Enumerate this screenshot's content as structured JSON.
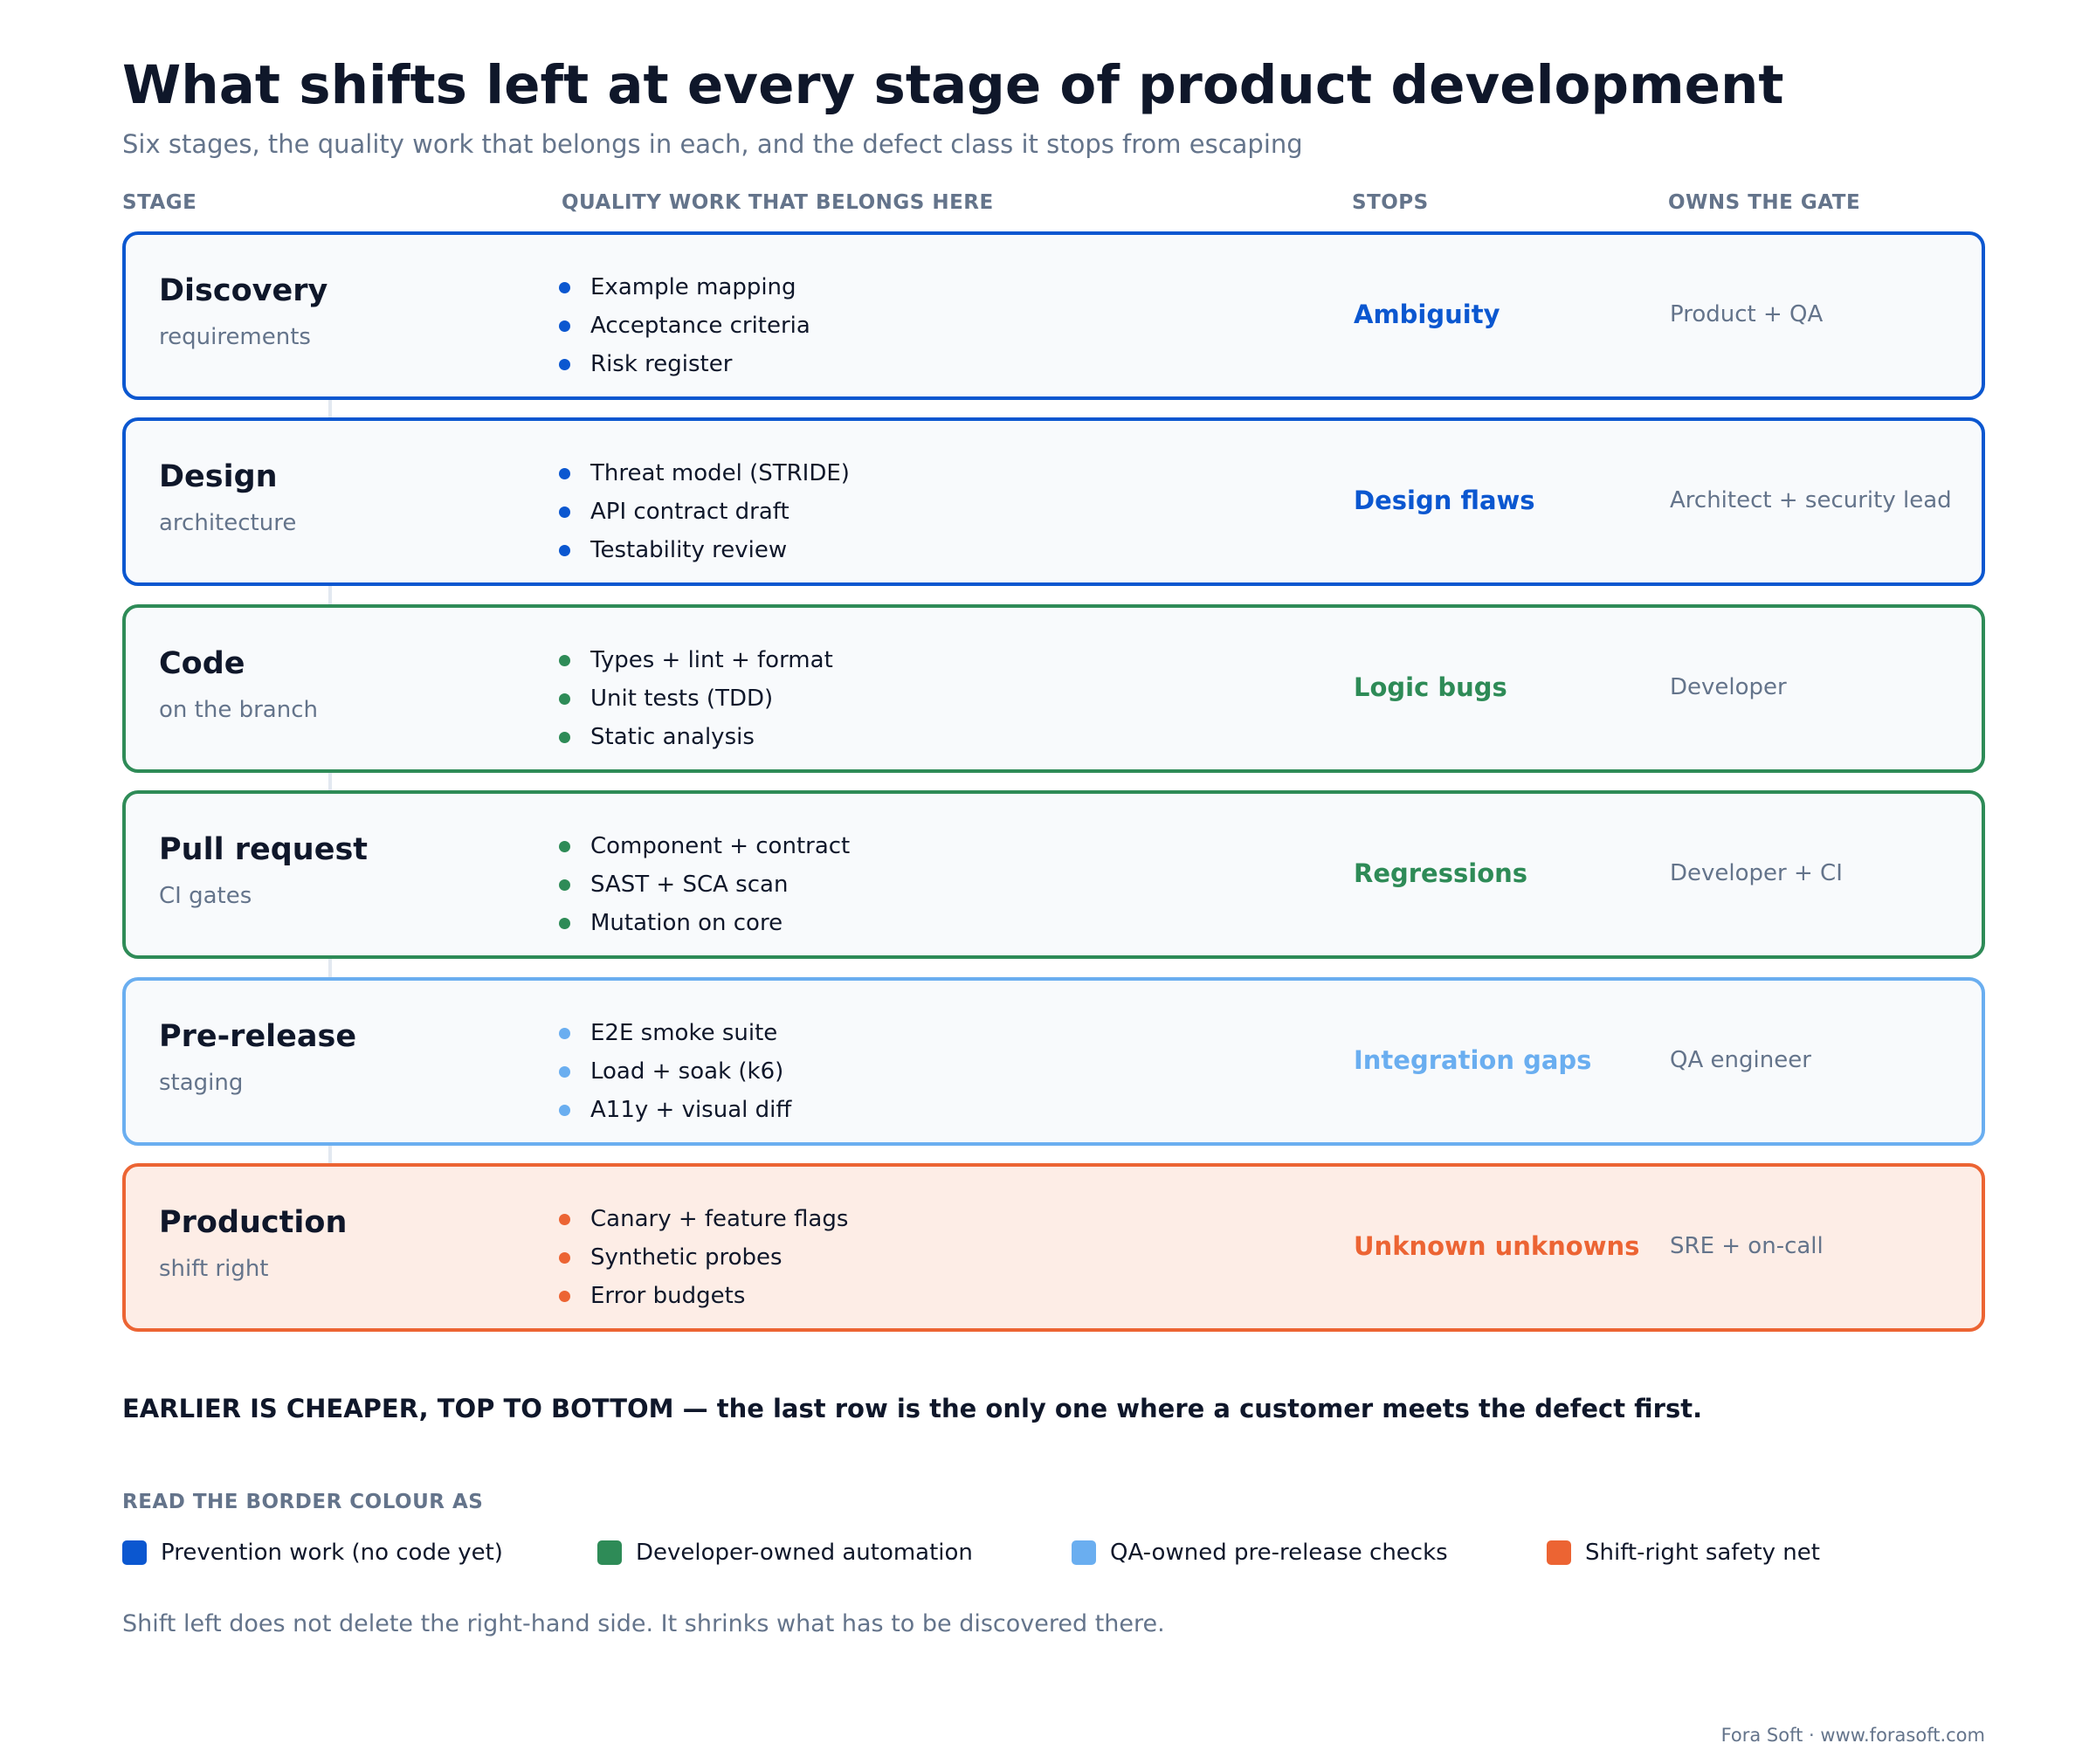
{
  "title": "What shifts left at every stage of product development",
  "subtitle": "Six stages, the quality work that belongs in each, and the defect class it stops from escaping",
  "columns": {
    "stage": "STAGE",
    "work": "QUALITY WORK THAT BELONGS HERE",
    "stops": "STOPS",
    "owner": "OWNS THE GATE"
  },
  "colors": {
    "prevention": "#0b57d0",
    "developer": "#2e8b57",
    "qa": "#6aaef0",
    "shift_right": "#ec6433"
  },
  "stages": [
    {
      "name": "Discovery",
      "sub": "requirements",
      "items": [
        "Example mapping",
        "Acceptance criteria",
        "Risk register"
      ],
      "stops": "Ambiguity",
      "owner": "Product + QA",
      "category": "prevention"
    },
    {
      "name": "Design",
      "sub": "architecture",
      "items": [
        "Threat model (STRIDE)",
        "API contract draft",
        "Testability review"
      ],
      "stops": "Design flaws",
      "owner": "Architect + security lead",
      "category": "prevention"
    },
    {
      "name": "Code",
      "sub": "on the branch",
      "items": [
        "Types + lint + format",
        "Unit tests (TDD)",
        "Static analysis"
      ],
      "stops": "Logic bugs",
      "owner": "Developer",
      "category": "developer"
    },
    {
      "name": "Pull request",
      "sub": "CI gates",
      "items": [
        "Component + contract",
        "SAST + SCA scan",
        "Mutation on core"
      ],
      "stops": "Regressions",
      "owner": "Developer + CI",
      "category": "developer"
    },
    {
      "name": "Pre-release",
      "sub": "staging",
      "items": [
        "E2E smoke suite",
        "Load + soak (k6)",
        "A11y + visual diff"
      ],
      "stops": "Integration gaps",
      "owner": "QA engineer",
      "category": "qa"
    },
    {
      "name": "Production",
      "sub": "shift right",
      "items": [
        "Canary + feature flags",
        "Synthetic probes",
        "Error budgets"
      ],
      "stops": "Unknown unknowns",
      "owner": "SRE + on-call",
      "category": "shift_right"
    }
  ],
  "takeaway": "EARLIER IS CHEAPER, TOP TO BOTTOM — the last row is the only one where a customer meets the defect first.",
  "legend": {
    "title": "READ THE BORDER COLOUR AS",
    "items": [
      {
        "label": "Prevention work (no code yet)",
        "category": "prevention"
      },
      {
        "label": "Developer-owned automation",
        "category": "developer"
      },
      {
        "label": "QA-owned pre-release checks",
        "category": "qa"
      },
      {
        "label": "Shift-right safety net",
        "category": "shift_right"
      }
    ]
  },
  "footnote": "Shift left does not delete the right-hand side. It shrinks what has to be discovered there.",
  "credit": "Fora Soft · www.forasoft.com"
}
